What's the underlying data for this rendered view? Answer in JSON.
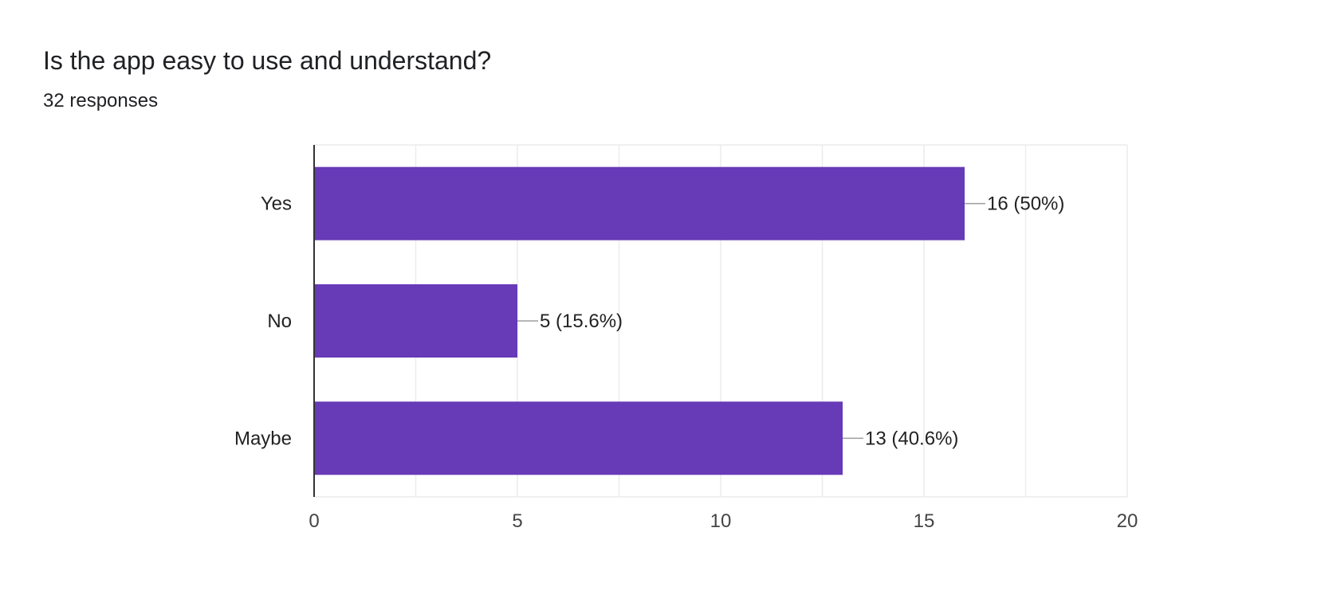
{
  "question": {
    "title": "Is the app easy to use and understand?",
    "responses": "32 responses"
  },
  "colors": {
    "bar": "#673ab7",
    "grid": "#ececec",
    "axis": "#333333",
    "leader": "#9e9e9e"
  },
  "chart_data": {
    "type": "bar",
    "orientation": "horizontal",
    "title": "",
    "xlabel": "",
    "ylabel": "",
    "categories": [
      "Yes",
      "No",
      "Maybe"
    ],
    "values": [
      16,
      5,
      13
    ],
    "value_labels": [
      "16 (50%)",
      "5 (15.6%)",
      "13 (40.6%)"
    ],
    "xlim": [
      0,
      20
    ],
    "xticks": [
      0,
      5,
      10,
      15,
      20
    ],
    "grid": true
  }
}
